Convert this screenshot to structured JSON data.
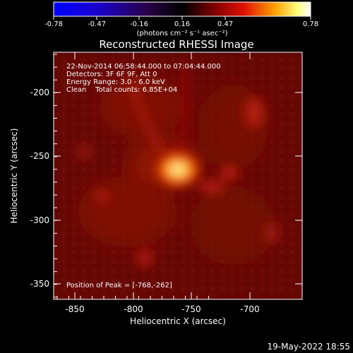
{
  "colorbar": {
    "ticks": [
      "-0.78",
      "-0.47",
      "-0.16",
      "0.16",
      "0.47",
      "0.78"
    ],
    "unit_label": "(photons cm⁻² s⁻¹ asec⁻²)"
  },
  "title": "Reconstructed RHESSI Image",
  "info": {
    "time_range": "22-Nov-2014 06:58:44.000 to 07:04:44.000",
    "detectors": "Detectors: 3F 6F 9F, Att 0",
    "energy": "Energy Range: 3.0 - 6.0 keV",
    "method_counts": "Clean    Total counts: 6.85E+04",
    "peak": "Position of Peak = [-768,-262]"
  },
  "axes": {
    "xlabel": "Heliocentric X (arcsec)",
    "ylabel": "Heliocentric Y (arcsec)",
    "xticks": [
      "-850",
      "-800",
      "-750",
      "-700"
    ],
    "yticks": [
      "-200",
      "-250",
      "-300",
      "-350"
    ]
  },
  "footer_date": "19-May-2022 18:55",
  "colors": {
    "background": "#000000",
    "colormap_low": "#0000ff",
    "colormap_mid": "#000000",
    "colormap_high": "#ffffff"
  }
}
